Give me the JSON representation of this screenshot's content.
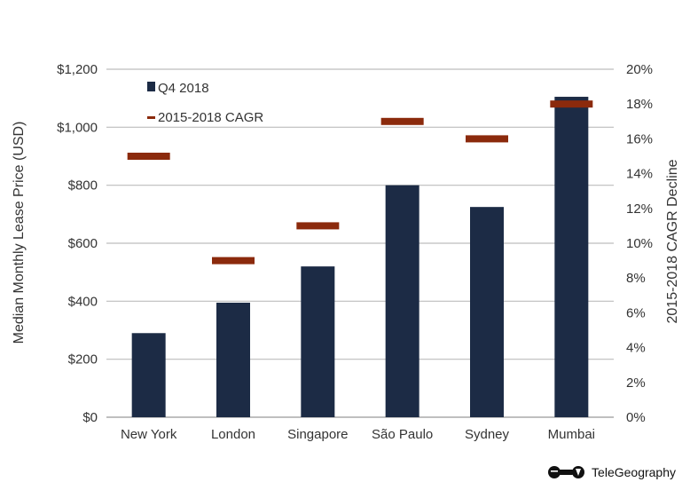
{
  "colors": {
    "bar": "#1c2b45",
    "cagr": "#8b2a0c",
    "grid": "#bdbdbd",
    "axis": "#999999"
  },
  "chart_data": {
    "type": "bar",
    "categories": [
      "New York",
      "London",
      "Singapore",
      "São Paulo",
      "Sydney",
      "Mumbai"
    ],
    "series": [
      {
        "name": "Q4 2018",
        "axis": "left",
        "values": [
          290,
          395,
          520,
          800,
          725,
          1105
        ]
      },
      {
        "name": "2015-2018 CAGR",
        "axis": "right",
        "marker": "dash",
        "values": [
          15,
          9,
          11,
          17,
          16,
          18
        ]
      }
    ],
    "ylabel": "Median Monthly Lease Price (USD)",
    "y2label": "2015-2018 CAGR Decline",
    "ylim": [
      0,
      1200
    ],
    "y2lim": [
      0,
      20
    ],
    "yticks": [
      {
        "value": 0,
        "label": "$0"
      },
      {
        "value": 200,
        "label": "$200"
      },
      {
        "value": 400,
        "label": "$400"
      },
      {
        "value": 600,
        "label": "$600"
      },
      {
        "value": 800,
        "label": "$800"
      },
      {
        "value": 1000,
        "label": "$1,000"
      },
      {
        "value": 1200,
        "label": "$1,200"
      }
    ],
    "y2ticks": [
      {
        "value": 0,
        "label": "0%"
      },
      {
        "value": 2,
        "label": "2%"
      },
      {
        "value": 4,
        "label": "4%"
      },
      {
        "value": 6,
        "label": "6%"
      },
      {
        "value": 8,
        "label": "8%"
      },
      {
        "value": 10,
        "label": "10%"
      },
      {
        "value": 12,
        "label": "12%"
      },
      {
        "value": 14,
        "label": "14%"
      },
      {
        "value": 16,
        "label": "16%"
      },
      {
        "value": 18,
        "label": "18%"
      },
      {
        "value": 20,
        "label": "20%"
      }
    ],
    "grid": true,
    "legend": {
      "position": "top-left",
      "items": [
        "Q4 2018",
        "2015-2018 CAGR"
      ]
    }
  },
  "brand": {
    "name": "TeleGeography",
    "icon": "telegeography-logo-icon"
  }
}
